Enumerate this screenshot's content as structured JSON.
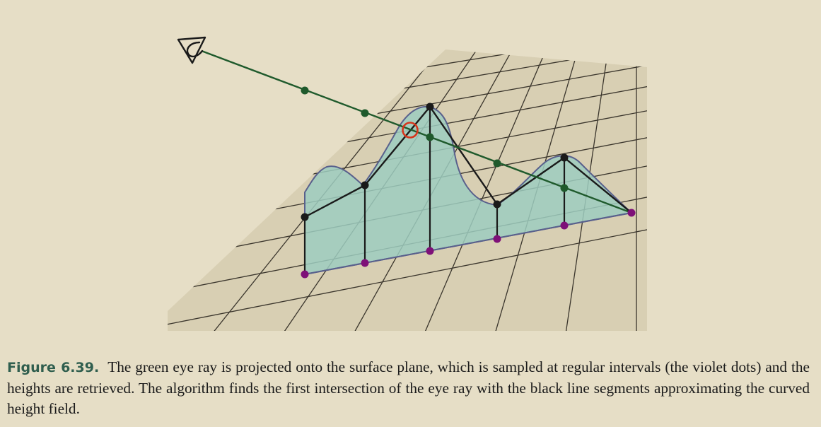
{
  "figure": {
    "label": "Figure 6.39.",
    "caption": "The green eye ray is projected onto the surface plane, which is sampled at regular intervals (the violet dots) and the heights are retrieved. The algorithm finds the first intersection of the eye ray with the black line segments approximating the curved height field."
  },
  "colors": {
    "background": "#e6dec6",
    "eye_ray": "#1f5a2c",
    "sample_dot_violet": "#7e1078",
    "height_point_black": "#1a1a1a",
    "intersection_marker": "#d6351c",
    "height_field_fill": "#9dcdbf",
    "height_field_outline": "#59608c",
    "caption_label": "#2f5e4e"
  },
  "icons": {
    "viewer": "eye-icon",
    "intersection": "intersection-circle-icon"
  }
}
